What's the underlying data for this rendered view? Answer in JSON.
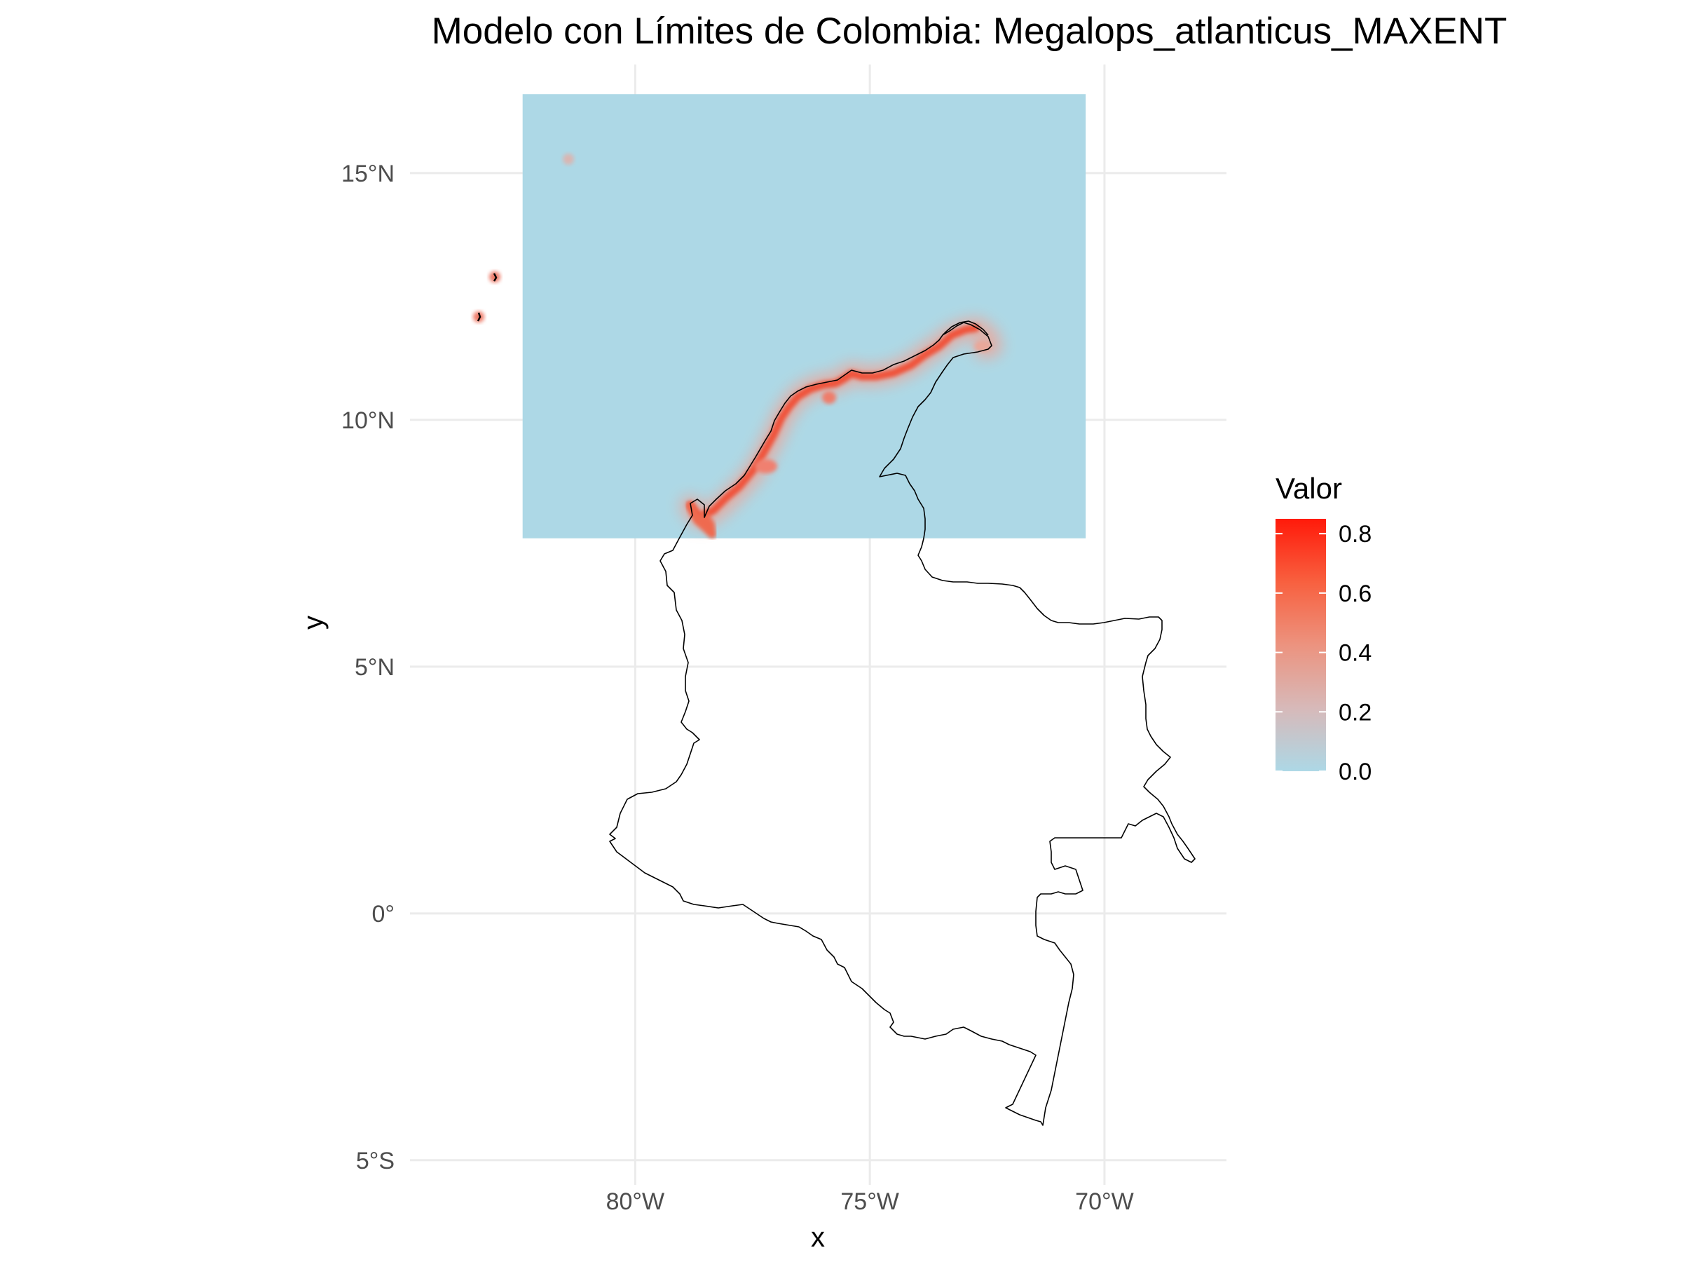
{
  "chart_data": {
    "type": "heatmap",
    "title": "Modelo con Límites de Colombia: Megalops_atlanticus_MAXENT",
    "xlabel": "x",
    "ylabel": "y",
    "xlim": [
      -84.8,
      -67.4
    ],
    "ylim": [
      -5.5,
      17.2
    ],
    "x_ticks": [
      -80,
      -75,
      -70
    ],
    "x_tick_labels": [
      "80°W",
      "75°W",
      "70°W"
    ],
    "y_ticks": [
      15,
      10,
      5,
      0,
      -5
    ],
    "y_tick_labels": [
      "15°N",
      "10°N",
      "5°N",
      "0°",
      "5°S"
    ],
    "grid": true,
    "raster_extent": {
      "lon": [
        -82.4,
        -70.4
      ],
      "lat": [
        7.6,
        16.6
      ]
    },
    "legend": {
      "title": "Valor",
      "position": "right",
      "min": 0.0,
      "max": 0.85,
      "ticks": [
        0.8,
        0.6,
        0.4,
        0.2,
        0.0
      ],
      "tick_labels": [
        "0.8",
        "0.6",
        "0.4",
        "0.2",
        "0.0"
      ],
      "low_color": "#add8e6",
      "high_color": "#ff0000"
    },
    "high_value_areas": [
      {
        "description": "Caribbean coastline of Colombia",
        "value_range": [
          0.4,
          0.85
        ]
      },
      {
        "description": "Island near 79.8°W 15.8°N",
        "value_range": [
          0.2,
          0.4
        ]
      },
      {
        "description": "Islands San Andrés and Providencia",
        "value_range": [
          0.3,
          0.6
        ]
      }
    ],
    "overlay": "Colombia national boundary"
  }
}
